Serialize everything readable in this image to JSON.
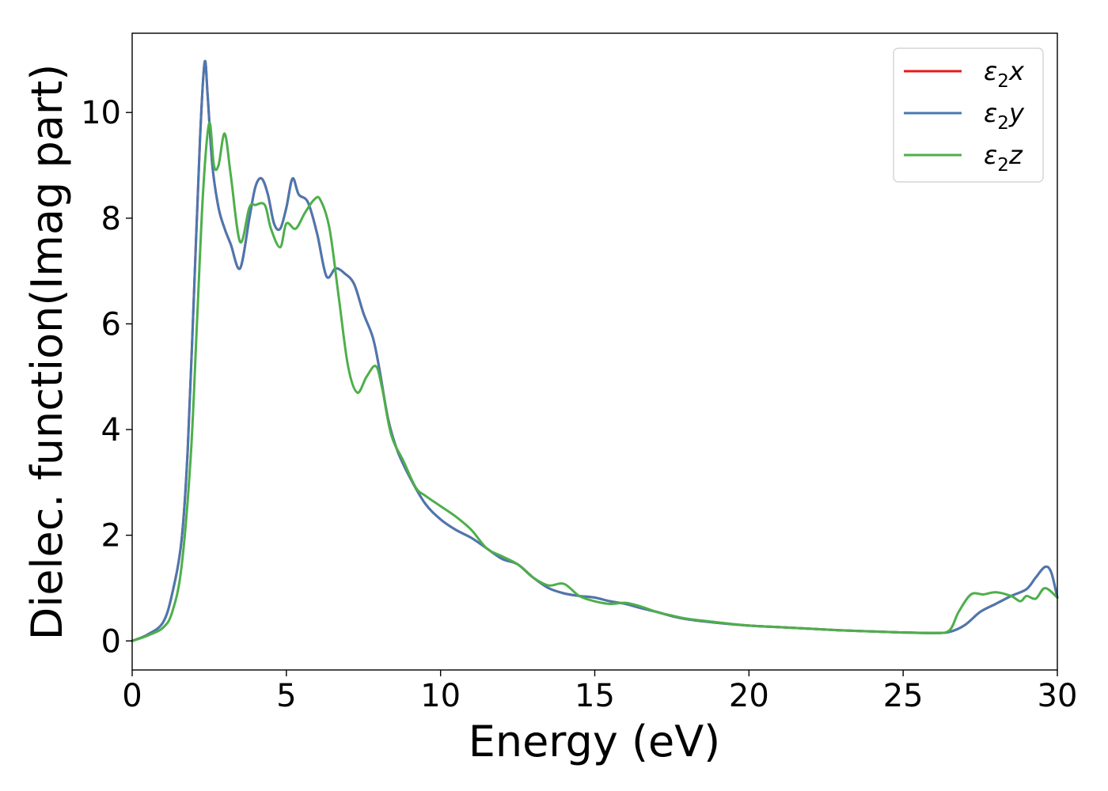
{
  "chart_data": {
    "type": "line",
    "xlabel": "Energy (eV)",
    "ylabel": "Dielec. function(Imag part)",
    "xlim": [
      0,
      30
    ],
    "ylim": [
      -0.55,
      11.5
    ],
    "xticks": [
      0,
      5,
      10,
      15,
      20,
      25,
      30
    ],
    "yticks": [
      0,
      2,
      4,
      6,
      8,
      10
    ],
    "grid": false,
    "legend_position": "top-right",
    "series": [
      {
        "name": "ε₂x",
        "legend_base": "ε",
        "legend_sub": "2",
        "legend_var": "x",
        "color": "#e41a1c",
        "x": [
          0,
          0.5,
          1.0,
          1.3,
          1.6,
          1.8,
          2.0,
          2.2,
          2.35,
          2.45,
          2.6,
          2.8,
          3.0,
          3.2,
          3.5,
          3.8,
          4.0,
          4.2,
          4.4,
          4.6,
          4.8,
          5.0,
          5.2,
          5.4,
          5.7,
          6.0,
          6.3,
          6.6,
          6.9,
          7.2,
          7.5,
          7.8,
          8.0,
          8.3,
          8.6,
          9.0,
          9.5,
          10.0,
          10.5,
          11.0,
          11.5,
          12.0,
          12.5,
          13.0,
          13.5,
          14.0,
          14.5,
          15.0,
          15.5,
          16.0,
          16.5,
          17.0,
          17.5,
          18.0,
          19.0,
          20.0,
          21.0,
          22.0,
          23.0,
          24.0,
          25.0,
          26.0,
          26.5,
          27.0,
          27.5,
          28.0,
          28.5,
          29.0,
          29.3,
          29.6,
          29.8,
          30.0
        ],
        "values": [
          0,
          0.12,
          0.35,
          0.9,
          1.9,
          3.6,
          6.5,
          9.5,
          10.95,
          10.3,
          9.0,
          8.2,
          7.8,
          7.5,
          7.05,
          8.0,
          8.6,
          8.75,
          8.45,
          7.9,
          7.8,
          8.2,
          8.75,
          8.45,
          8.3,
          7.7,
          6.9,
          7.05,
          6.95,
          6.75,
          6.2,
          5.75,
          5.2,
          4.2,
          3.6,
          3.1,
          2.6,
          2.3,
          2.1,
          1.95,
          1.75,
          1.55,
          1.45,
          1.2,
          1.0,
          0.9,
          0.85,
          0.82,
          0.75,
          0.7,
          0.62,
          0.55,
          0.47,
          0.41,
          0.34,
          0.29,
          0.26,
          0.23,
          0.2,
          0.18,
          0.16,
          0.15,
          0.17,
          0.3,
          0.55,
          0.7,
          0.85,
          0.98,
          1.2,
          1.4,
          1.3,
          0.82
        ]
      },
      {
        "name": "ε₂y",
        "legend_base": "ε",
        "legend_sub": "2",
        "legend_var": "y",
        "color": "#4a78b0",
        "x": [
          0,
          0.5,
          1.0,
          1.3,
          1.6,
          1.8,
          2.0,
          2.2,
          2.35,
          2.45,
          2.6,
          2.8,
          3.0,
          3.2,
          3.5,
          3.8,
          4.0,
          4.2,
          4.4,
          4.6,
          4.8,
          5.0,
          5.2,
          5.4,
          5.7,
          6.0,
          6.3,
          6.6,
          6.9,
          7.2,
          7.5,
          7.8,
          8.0,
          8.3,
          8.6,
          9.0,
          9.5,
          10.0,
          10.5,
          11.0,
          11.5,
          12.0,
          12.5,
          13.0,
          13.5,
          14.0,
          14.5,
          15.0,
          15.5,
          16.0,
          16.5,
          17.0,
          17.5,
          18.0,
          19.0,
          20.0,
          21.0,
          22.0,
          23.0,
          24.0,
          25.0,
          26.0,
          26.5,
          27.0,
          27.5,
          28.0,
          28.5,
          29.0,
          29.3,
          29.6,
          29.8,
          30.0
        ],
        "values": [
          0,
          0.12,
          0.35,
          0.9,
          1.9,
          3.6,
          6.5,
          9.5,
          10.95,
          10.3,
          9.0,
          8.2,
          7.8,
          7.5,
          7.05,
          8.0,
          8.6,
          8.75,
          8.45,
          7.9,
          7.8,
          8.2,
          8.75,
          8.45,
          8.3,
          7.7,
          6.9,
          7.05,
          6.95,
          6.75,
          6.2,
          5.75,
          5.2,
          4.2,
          3.6,
          3.1,
          2.6,
          2.3,
          2.1,
          1.95,
          1.75,
          1.55,
          1.45,
          1.2,
          1.0,
          0.9,
          0.85,
          0.82,
          0.75,
          0.7,
          0.62,
          0.55,
          0.47,
          0.41,
          0.34,
          0.29,
          0.26,
          0.23,
          0.2,
          0.18,
          0.16,
          0.15,
          0.17,
          0.3,
          0.55,
          0.7,
          0.85,
          0.98,
          1.2,
          1.4,
          1.3,
          0.82
        ]
      },
      {
        "name": "ε₂z",
        "legend_base": "ε",
        "legend_sub": "2",
        "legend_var": "z",
        "color": "#4daf4a",
        "x": [
          0,
          0.5,
          1.0,
          1.3,
          1.6,
          1.9,
          2.1,
          2.3,
          2.5,
          2.65,
          2.8,
          3.0,
          3.2,
          3.5,
          3.8,
          4.0,
          4.3,
          4.5,
          4.8,
          5.0,
          5.3,
          5.6,
          5.9,
          6.1,
          6.4,
          6.7,
          7.0,
          7.3,
          7.6,
          7.9,
          8.1,
          8.4,
          8.8,
          9.2,
          9.5,
          10.0,
          10.5,
          11.0,
          11.5,
          12.0,
          12.5,
          13.0,
          13.5,
          14.0,
          14.5,
          15.0,
          15.5,
          16.0,
          16.5,
          17.0,
          17.5,
          18.0,
          19.0,
          20.0,
          21.0,
          22.0,
          23.0,
          24.0,
          25.0,
          26.0,
          26.5,
          26.8,
          27.2,
          27.6,
          28.0,
          28.5,
          28.8,
          29.0,
          29.3,
          29.6,
          30.0
        ],
        "values": [
          0,
          0.1,
          0.25,
          0.55,
          1.4,
          3.5,
          6.0,
          8.5,
          9.8,
          9.0,
          9.0,
          9.6,
          8.8,
          7.55,
          8.2,
          8.25,
          8.25,
          7.8,
          7.45,
          7.9,
          7.8,
          8.1,
          8.35,
          8.35,
          7.8,
          6.5,
          5.2,
          4.7,
          5.0,
          5.2,
          4.8,
          3.9,
          3.4,
          2.9,
          2.75,
          2.55,
          2.35,
          2.1,
          1.75,
          1.6,
          1.45,
          1.2,
          1.05,
          1.08,
          0.85,
          0.75,
          0.7,
          0.72,
          0.65,
          0.55,
          0.48,
          0.42,
          0.35,
          0.29,
          0.26,
          0.23,
          0.2,
          0.18,
          0.16,
          0.15,
          0.2,
          0.55,
          0.88,
          0.88,
          0.92,
          0.85,
          0.75,
          0.85,
          0.8,
          1.0,
          0.82
        ]
      }
    ]
  }
}
